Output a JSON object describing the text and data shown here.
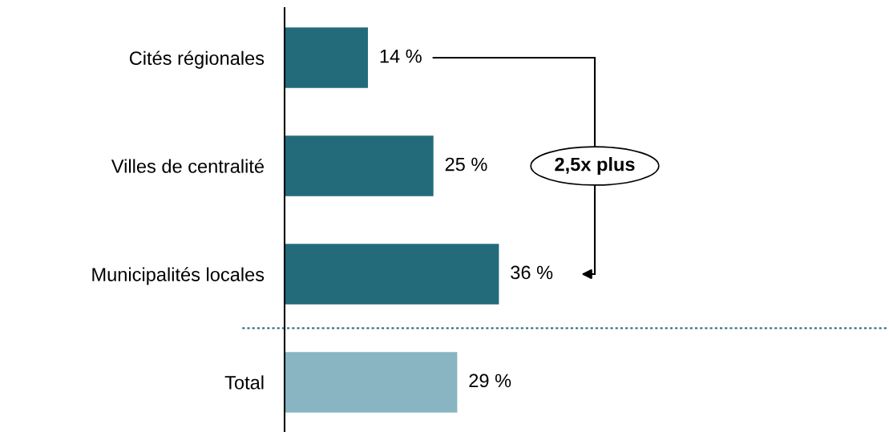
{
  "chart_data": {
    "type": "bar",
    "orientation": "horizontal",
    "categories": [
      "Cités régionales",
      "Villes de centralité",
      "Municipalités locales",
      "Total"
    ],
    "values": [
      14,
      25,
      36,
      29
    ],
    "colors": [
      "#236b7a",
      "#236b7a",
      "#236b7a",
      "#88b5c1"
    ],
    "value_labels": [
      "14 %",
      "25 %",
      "36 %",
      "29 %"
    ],
    "annotations": [
      "2,5x plus"
    ],
    "grid": false,
    "legend": false
  }
}
